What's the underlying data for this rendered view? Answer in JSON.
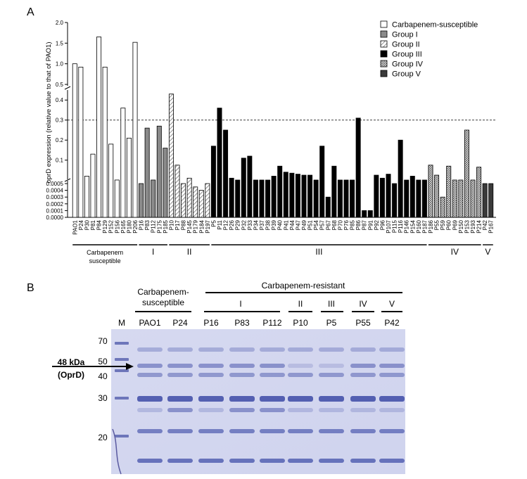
{
  "panel_a": {
    "label": "A",
    "ylabel": "oprD expression (relative value to that of PAO1)",
    "ref_line": 0.3,
    "upper_ticks": [
      "2.0",
      "1.5",
      "1.0",
      "0.5"
    ],
    "mid_ticks": [
      "0.4",
      "0.3",
      "0.2",
      "0.1"
    ],
    "low_ticks": [
      "0.0005",
      "0.0004",
      "0.0003",
      "0.0002",
      "0.0001",
      "0.0000"
    ],
    "legend": [
      {
        "label": "Carbapenem-susceptible",
        "pattern": "susc"
      },
      {
        "label": "Group I",
        "pattern": "g1"
      },
      {
        "label": "Group II",
        "pattern": "g2"
      },
      {
        "label": "Group III",
        "pattern": "g3"
      },
      {
        "label": "Group IV",
        "pattern": "g4"
      },
      {
        "label": "Group V",
        "pattern": "g5"
      }
    ],
    "groups": [
      {
        "label": "Carbapenem",
        "label2": "susceptible"
      },
      {
        "label": "I",
        "label2": ""
      },
      {
        "label": "II",
        "label2": ""
      },
      {
        "label": "III",
        "label2": ""
      },
      {
        "label": "IV",
        "label2": ""
      },
      {
        "label": "V",
        "label2": ""
      }
    ]
  },
  "chart_data": {
    "type": "bar",
    "ylabel": "oprD expression (relative value to that of PAO1)",
    "axis_segments": [
      [
        0,
        0.0005
      ],
      [
        0.0005,
        0.45
      ],
      [
        0.5,
        2.0
      ]
    ],
    "reference_line": 0.3,
    "bars": [
      {
        "name": "PAO1",
        "value": 1.0,
        "group": "susc"
      },
      {
        "name": "P24",
        "value": 0.92,
        "group": "susc"
      },
      {
        "name": "P30",
        "value": 0.02,
        "group": "susc"
      },
      {
        "name": "P81",
        "value": 0.13,
        "group": "susc"
      },
      {
        "name": "P84",
        "value": 1.65,
        "group": "susc"
      },
      {
        "name": "P129",
        "value": 0.92,
        "group": "susc"
      },
      {
        "name": "P152",
        "value": 0.18,
        "group": "susc"
      },
      {
        "name": "P156",
        "value": 0.0007,
        "group": "susc"
      },
      {
        "name": "P165",
        "value": 0.36,
        "group": "susc"
      },
      {
        "name": "P180",
        "value": 0.21,
        "group": "susc"
      },
      {
        "name": "P206",
        "value": 1.52,
        "group": "susc"
      },
      {
        "name": "P16",
        "value": 0.0005,
        "group": "g1"
      },
      {
        "name": "P83",
        "value": 0.26,
        "group": "g1"
      },
      {
        "name": "P112",
        "value": 0.0007,
        "group": "g1"
      },
      {
        "name": "P175",
        "value": 0.27,
        "group": "g1"
      },
      {
        "name": "P185",
        "value": 0.16,
        "group": "g1"
      },
      {
        "name": "P10",
        "value": 0.43,
        "group": "g2"
      },
      {
        "name": "P17",
        "value": 0.075,
        "group": "g2"
      },
      {
        "name": "P88",
        "value": 0.0005,
        "group": "g2"
      },
      {
        "name": "P145",
        "value": 0.01,
        "group": "g2"
      },
      {
        "name": "P179",
        "value": 0.00045,
        "group": "g2"
      },
      {
        "name": "P184",
        "value": 0.0004,
        "group": "g2"
      },
      {
        "name": "P197",
        "value": 0.0005,
        "group": "g2"
      },
      {
        "name": "P5",
        "value": 0.17,
        "group": "g3"
      },
      {
        "name": "P11",
        "value": 0.36,
        "group": "g3"
      },
      {
        "name": "P12",
        "value": 0.25,
        "group": "g3"
      },
      {
        "name": "P26",
        "value": 0.01,
        "group": "g3"
      },
      {
        "name": "P29",
        "value": 0.0007,
        "group": "g3"
      },
      {
        "name": "P32",
        "value": 0.11,
        "group": "g3"
      },
      {
        "name": "P33",
        "value": 0.12,
        "group": "g3"
      },
      {
        "name": "P34",
        "value": 0.0007,
        "group": "g3"
      },
      {
        "name": "P37",
        "value": 0.0007,
        "group": "g3"
      },
      {
        "name": "P38",
        "value": 0.0006,
        "group": "g3"
      },
      {
        "name": "P39",
        "value": 0.02,
        "group": "g3"
      },
      {
        "name": "P40",
        "value": 0.07,
        "group": "g3"
      },
      {
        "name": "P41",
        "value": 0.04,
        "group": "g3"
      },
      {
        "name": "P44",
        "value": 0.035,
        "group": "g3"
      },
      {
        "name": "P47",
        "value": 0.03,
        "group": "g3"
      },
      {
        "name": "P49",
        "value": 0.025,
        "group": "g3"
      },
      {
        "name": "P51",
        "value": 0.025,
        "group": "g3"
      },
      {
        "name": "P54",
        "value": 0.0007,
        "group": "g3"
      },
      {
        "name": "P57",
        "value": 0.17,
        "group": "g3"
      },
      {
        "name": "P67",
        "value": 0.0003,
        "group": "g3"
      },
      {
        "name": "P68",
        "value": 0.07,
        "group": "g3"
      },
      {
        "name": "P70",
        "value": 0.0007,
        "group": "g3"
      },
      {
        "name": "P76",
        "value": 0.0007,
        "group": "g3"
      },
      {
        "name": "P85",
        "value": 0.0007,
        "group": "g3"
      },
      {
        "name": "P86",
        "value": 0.31,
        "group": "g3"
      },
      {
        "name": "P87",
        "value": 0.0001,
        "group": "g3"
      },
      {
        "name": "P91",
        "value": 0.0001,
        "group": "g3"
      },
      {
        "name": "P92",
        "value": 0.025,
        "group": "g3"
      },
      {
        "name": "P96",
        "value": 0.01,
        "group": "g3"
      },
      {
        "name": "P107",
        "value": 0.03,
        "group": "g3"
      },
      {
        "name": "P115",
        "value": 0.0005,
        "group": "g3"
      },
      {
        "name": "P116",
        "value": 0.2,
        "group": "g3"
      },
      {
        "name": "P146",
        "value": 0.0006,
        "group": "g3"
      },
      {
        "name": "P154",
        "value": 0.02,
        "group": "g3"
      },
      {
        "name": "P160",
        "value": 0.0007,
        "group": "g3"
      },
      {
        "name": "P187",
        "value": 0.0007,
        "group": "g3"
      },
      {
        "name": "P186",
        "value": 0.075,
        "group": "g4"
      },
      {
        "name": "P55",
        "value": 0.025,
        "group": "g4"
      },
      {
        "name": "P59",
        "value": 0.0003,
        "group": "g4"
      },
      {
        "name": "P60",
        "value": 0.07,
        "group": "g4"
      },
      {
        "name": "P69",
        "value": 0.0007,
        "group": "g4"
      },
      {
        "name": "P150",
        "value": 0.0007,
        "group": "g4"
      },
      {
        "name": "P153",
        "value": 0.25,
        "group": "g4"
      },
      {
        "name": "P193",
        "value": 0.0007,
        "group": "g4"
      },
      {
        "name": "P214",
        "value": 0.065,
        "group": "g4"
      },
      {
        "name": "P42",
        "value": 0.0005,
        "group": "g5"
      },
      {
        "name": "P167",
        "value": 0.0005,
        "group": "g5"
      }
    ]
  },
  "panel_b": {
    "label": "B",
    "header_susc": "Carbapenem-",
    "header_susc2": "susceptible",
    "header_res": "Carbapenem-resistant",
    "group_headers": [
      "I",
      "II",
      "III",
      "IV",
      "V"
    ],
    "lanes": [
      "M",
      "PAO1",
      "P24",
      "P16",
      "P83",
      "P112",
      "P10",
      "P5",
      "P55",
      "P42"
    ],
    "markers": [
      "70",
      "50",
      "40",
      "30",
      "20"
    ],
    "annotation": "48 kDa",
    "annotation2": "(OprD)"
  }
}
